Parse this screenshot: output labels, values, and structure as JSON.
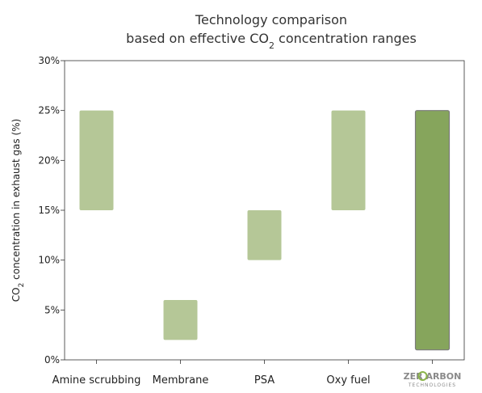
{
  "chart_data": {
    "type": "bar",
    "title_lines": [
      "Technology comparison",
      "based on effective CO",
      "2",
      " concentration ranges"
    ],
    "ylabel_parts": [
      "CO",
      "2",
      " concentration in exhaust gas (%)"
    ],
    "xlabel": "",
    "categories": [
      "Amine scrubbing",
      "Membrane",
      "PSA",
      "Oxy fuel",
      "ZEROCARBON TECHNOLOGIES"
    ],
    "ranges": [
      [
        15,
        25
      ],
      [
        2,
        6
      ],
      [
        10,
        15
      ],
      [
        15,
        25
      ],
      [
        1,
        25
      ]
    ],
    "ylim": [
      0,
      30
    ],
    "yticks": [
      0,
      5,
      10,
      15,
      20,
      25,
      30
    ],
    "ytick_labels": [
      "0%",
      "5%",
      "10%",
      "15%",
      "20%",
      "25%",
      "30%"
    ],
    "grid": false
  },
  "colors": {
    "bar_light": "#b5c797",
    "bar_dark": "#86a55c",
    "bar_dark_stroke": "#7b7b7b",
    "axis": "#333333",
    "logo_green": "#8bb44a",
    "logo_grey": "#8a8a8a"
  },
  "logo": {
    "text_left": "ZER",
    "text_right": "ARBON",
    "subtitle": "TECHNOLOGIES"
  }
}
